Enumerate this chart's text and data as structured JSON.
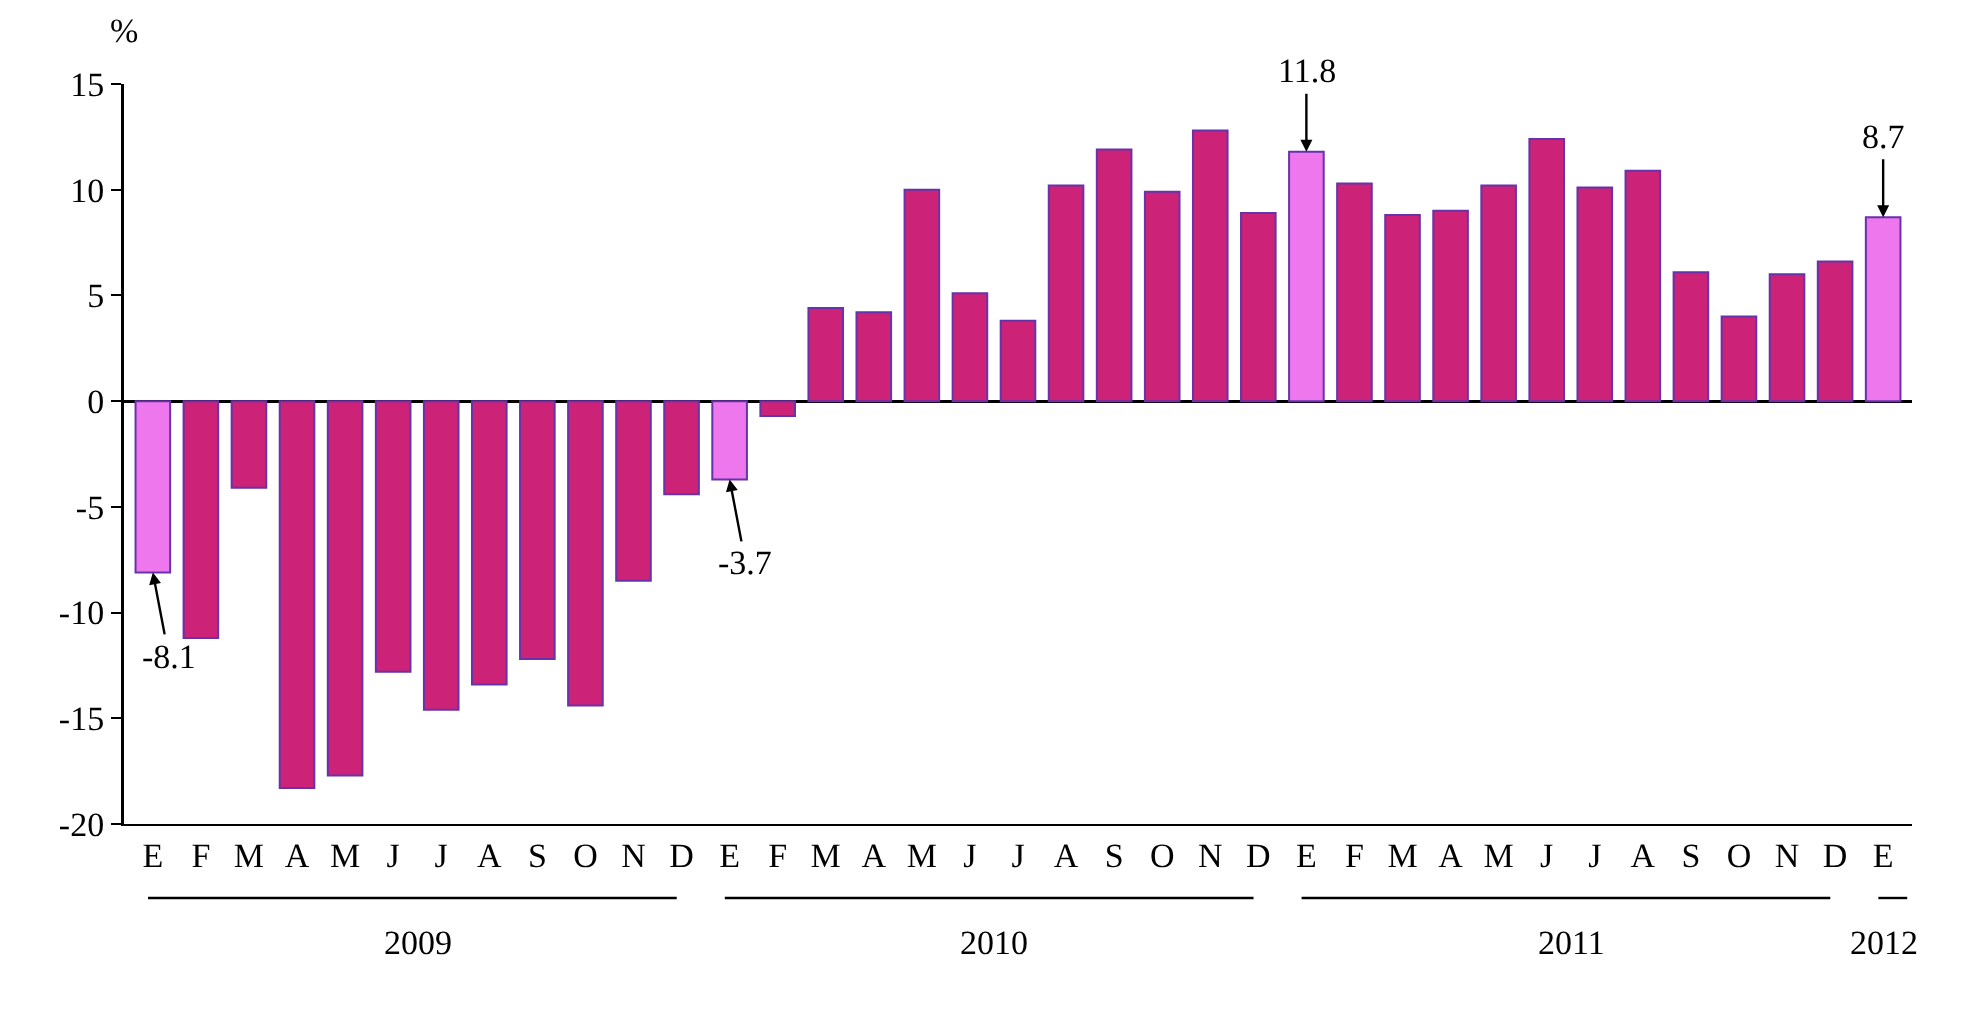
{
  "chart_data": {
    "type": "bar",
    "ylabel": "%",
    "categories": [
      "E",
      "F",
      "M",
      "A",
      "M",
      "J",
      "J",
      "A",
      "S",
      "O",
      "N",
      "D",
      "E",
      "F",
      "M",
      "A",
      "M",
      "J",
      "J",
      "A",
      "S",
      "O",
      "N",
      "D",
      "E",
      "F",
      "M",
      "A",
      "M",
      "J",
      "J",
      "A",
      "S",
      "O",
      "N",
      "D",
      "E"
    ],
    "values": [
      -8.1,
      -11.2,
      -4.1,
      -18.3,
      -17.7,
      -12.8,
      -14.6,
      -13.4,
      -12.2,
      -14.4,
      -8.5,
      -4.4,
      -3.7,
      -0.7,
      4.4,
      4.2,
      10.0,
      5.1,
      3.8,
      10.2,
      11.9,
      9.9,
      12.8,
      8.9,
      11.8,
      10.3,
      8.8,
      9.0,
      10.2,
      12.4,
      10.1,
      10.9,
      6.1,
      4.0,
      6.0,
      6.6,
      8.7
    ],
    "colors": [
      "#ee77ee",
      "#cc2277",
      "#cc2277",
      "#cc2277",
      "#cc2277",
      "#cc2277",
      "#cc2277",
      "#cc2277",
      "#cc2277",
      "#cc2277",
      "#cc2277",
      "#cc2277",
      "#ee77ee",
      "#cc2277",
      "#cc2277",
      "#cc2277",
      "#cc2277",
      "#cc2277",
      "#cc2277",
      "#cc2277",
      "#cc2277",
      "#cc2277",
      "#cc2277",
      "#cc2277",
      "#ee77ee",
      "#cc2277",
      "#cc2277",
      "#cc2277",
      "#cc2277",
      "#cc2277",
      "#cc2277",
      "#cc2277",
      "#cc2277",
      "#cc2277",
      "#cc2277",
      "#cc2277",
      "#ee77ee"
    ],
    "value_labels": [
      "-8.1",
      null,
      null,
      null,
      null,
      null,
      null,
      null,
      null,
      null,
      null,
      null,
      "-3.7",
      null,
      null,
      null,
      null,
      null,
      null,
      null,
      null,
      null,
      null,
      null,
      "11.8",
      null,
      null,
      null,
      null,
      null,
      null,
      null,
      null,
      null,
      null,
      null,
      "8.7"
    ],
    "annotations": [
      "2009",
      "2010",
      "2011",
      "2012"
    ],
    "ylim": [
      -20,
      15
    ],
    "yticks": [
      -20,
      -15,
      -10,
      -5,
      0,
      5,
      10,
      15
    ]
  }
}
